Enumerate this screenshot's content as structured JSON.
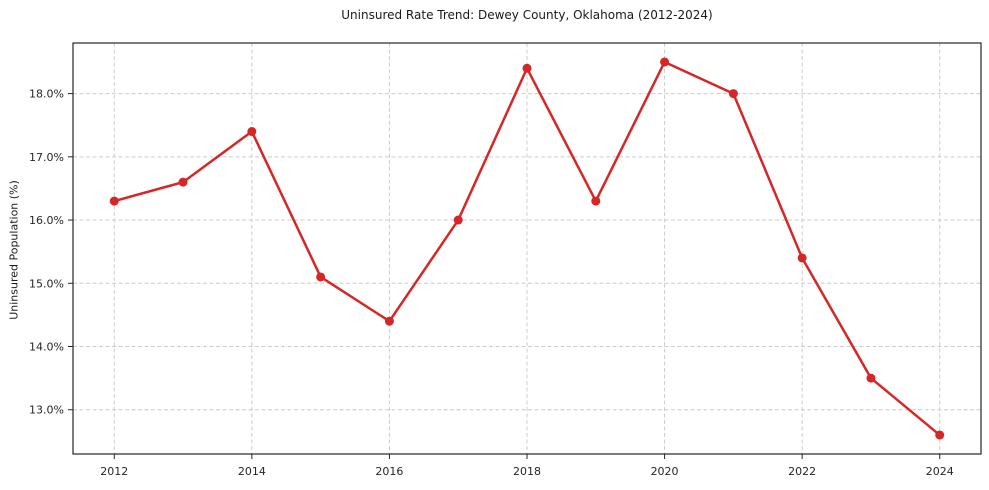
{
  "chart_data": {
    "type": "line",
    "title": "Uninsured Rate Trend: Dewey County, Oklahoma (2012-2024)",
    "xlabel": "",
    "ylabel": "Uninsured Population (%)",
    "x": [
      2012,
      2013,
      2014,
      2015,
      2016,
      2017,
      2018,
      2019,
      2020,
      2021,
      2022,
      2023,
      2024
    ],
    "values": [
      16.3,
      16.6,
      17.4,
      15.1,
      14.4,
      16.0,
      18.4,
      16.3,
      18.5,
      18.0,
      15.4,
      13.5,
      12.6
    ],
    "xlim": [
      2011.4,
      2024.6
    ],
    "ylim": [
      12.3,
      18.8
    ],
    "xticks": {
      "values": [
        2012,
        2014,
        2016,
        2018,
        2020,
        2022,
        2024
      ],
      "labels": [
        "2012",
        "2014",
        "2016",
        "2018",
        "2020",
        "2022",
        "2024"
      ]
    },
    "yticks": {
      "values": [
        13,
        14,
        15,
        16,
        17,
        18
      ],
      "labels": [
        "13.0%",
        "14.0%",
        "15.0%",
        "16.0%",
        "17.0%",
        "18.0%"
      ]
    },
    "grid": true,
    "grid_style": "dashed",
    "legend": "none",
    "colors": {
      "line": "#d62728",
      "marker": "#d62728",
      "grid": "#cccccc",
      "axis": "#262626",
      "tick_label": "#262626",
      "background": "#ffffff"
    }
  }
}
